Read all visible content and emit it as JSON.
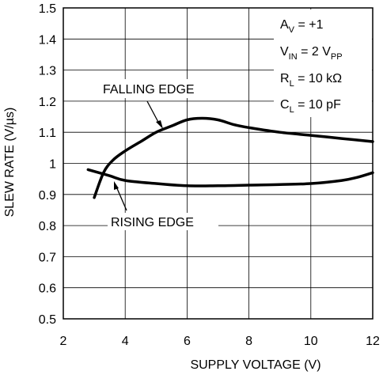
{
  "chart_data": {
    "type": "line",
    "title": "",
    "xlabel": "SUPPLY VOLTAGE (V)",
    "ylabel": "SLEW RATE (V/µs)",
    "xlim": [
      2,
      12
    ],
    "ylim": [
      0.5,
      1.5
    ],
    "x_ticks": [
      "2",
      "4",
      "6",
      "8",
      "10",
      "12"
    ],
    "y_ticks": [
      "0.5",
      "0.6",
      "0.7",
      "0.8",
      "0.9",
      "1",
      "1.1",
      "1.2",
      "1.3",
      "1.4",
      "1.5"
    ],
    "grid": true,
    "series": [
      {
        "name": "FALLING EDGE",
        "x": [
          3.0,
          3.3,
          3.6,
          4.0,
          4.5,
          5.0,
          5.5,
          6.0,
          6.5,
          7.0,
          7.5,
          8.0,
          9.0,
          10.0,
          11.0,
          12.0
        ],
        "y": [
          0.89,
          0.97,
          1.01,
          1.04,
          1.07,
          1.1,
          1.12,
          1.14,
          1.145,
          1.14,
          1.125,
          1.115,
          1.1,
          1.09,
          1.08,
          1.07
        ]
      },
      {
        "name": "RISING EDGE",
        "x": [
          2.8,
          3.5,
          4.0,
          5.0,
          6.0,
          7.0,
          8.0,
          9.0,
          10.0,
          11.0,
          11.5,
          12.0
        ],
        "y": [
          0.98,
          0.96,
          0.945,
          0.935,
          0.928,
          0.928,
          0.93,
          0.932,
          0.935,
          0.945,
          0.955,
          0.97
        ]
      }
    ],
    "annotations": {
      "falling_label": "FALLING EDGE",
      "rising_label": "RISING EDGE"
    },
    "conditions": {
      "av_main": "A",
      "av_sub": "V",
      "av_rest": " = +1",
      "vin_main": "V",
      "vin_sub": "IN",
      "vin_mid": " = 2 V",
      "vin_sub2": "PP",
      "rl_main": "R",
      "rl_sub": "L",
      "rl_rest": " = 10 kΩ",
      "cl_main": "C",
      "cl_sub": "L",
      "cl_rest": " = 10 pF"
    }
  }
}
